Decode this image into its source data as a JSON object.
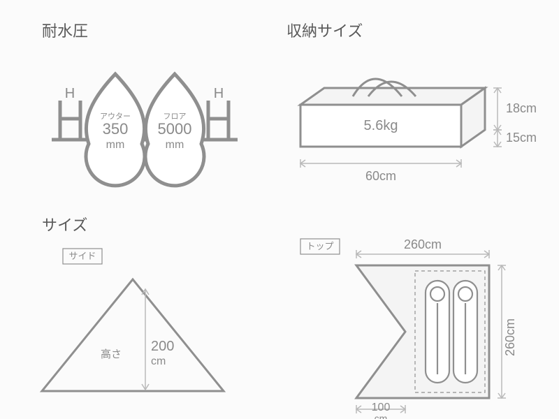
{
  "colors": {
    "bg": "#fbfbfb",
    "stroke": "#8f8f8f",
    "text_dark": "#595959",
    "text_grey": "#8a8a8a",
    "fill_light": "#f4f4f4",
    "white": "#ffffff",
    "dim_border": "#b9b9b9"
  },
  "sections": {
    "waterproof": {
      "title": "耐水圧",
      "drop1": {
        "label": "アウター",
        "value": "350",
        "unit": "mm"
      },
      "drop2": {
        "label": "フロア",
        "value": "5000",
        "unit": "mm"
      },
      "h_letter": "H"
    },
    "packed": {
      "title": "収納サイズ",
      "weight": "5.6kg",
      "width": "60cm",
      "depth": "15cm",
      "height": "18cm"
    },
    "size_side": {
      "title": "サイズ",
      "badge": "サイド",
      "height_label": "高さ",
      "height_value": "200",
      "height_unit": "cm"
    },
    "size_top": {
      "badge": "トップ",
      "width": "260cm",
      "height": "260cm",
      "inner": "100",
      "inner_unit": "cm"
    }
  },
  "style": {
    "title_fontsize": 22,
    "badge_fontsize": 13,
    "dim_fontsize": 18,
    "small_fontsize": 11,
    "stroke_thick": 5,
    "stroke_med": 3,
    "stroke_thin": 1.5
  }
}
